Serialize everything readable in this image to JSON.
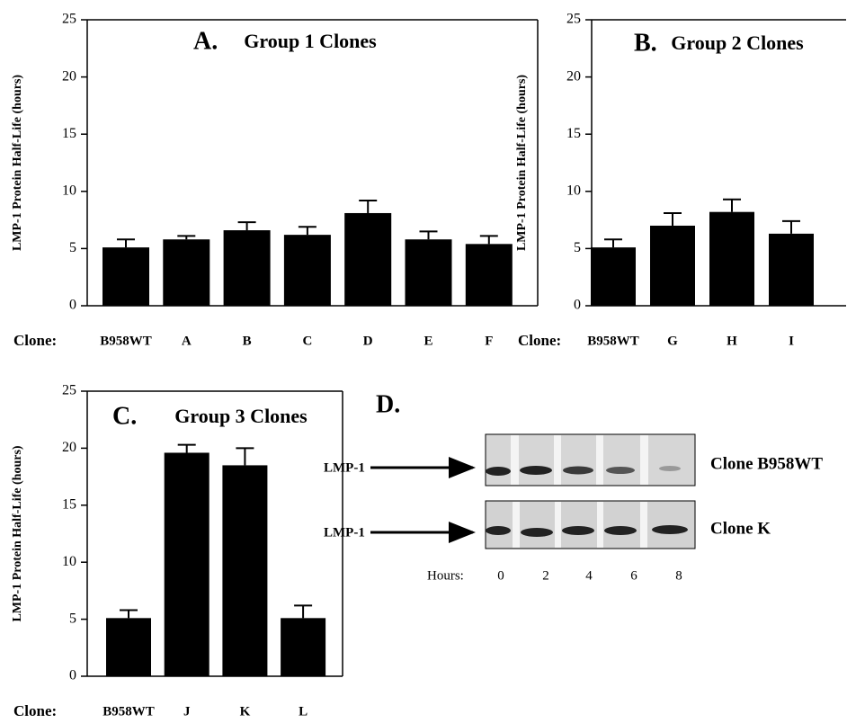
{
  "chart_data": [
    {
      "type": "bar",
      "label": "A.",
      "title": "Group 1 Clones",
      "y_label": "LMP-1 Protein Half-Life (hours)",
      "x_label": "Clone:",
      "categories": [
        "B958WT",
        "A",
        "B",
        "C",
        "D",
        "E",
        "F"
      ],
      "values": [
        5.1,
        5.8,
        6.6,
        6.2,
        8.1,
        5.8,
        5.4
      ],
      "errors": [
        0.7,
        0.3,
        0.7,
        0.7,
        1.1,
        0.7,
        0.7
      ],
      "color": "#000000",
      "ylim": [
        0,
        25
      ],
      "yticks": [
        0,
        5,
        10,
        15,
        20,
        25
      ]
    },
    {
      "type": "bar",
      "label": "B.",
      "title": "Group 2 Clones",
      "y_label": "LMP-1 Protein Half-Life (hours)",
      "x_label": "Clone:",
      "categories": [
        "B958WT",
        "G",
        "H",
        "I"
      ],
      "values": [
        5.1,
        7.0,
        8.2,
        6.3
      ],
      "errors": [
        0.7,
        1.1,
        1.1,
        1.1
      ],
      "color": "#000000",
      "ylim": [
        0,
        25
      ],
      "yticks": [
        0,
        5,
        10,
        15,
        20,
        25
      ]
    },
    {
      "type": "bar",
      "label": "C.",
      "title": "Group 3 Clones",
      "y_label": "LMP-1 Protein Half-Life (hours)",
      "x_label": "Clone:",
      "categories": [
        "B958WT",
        "J",
        "K",
        "L"
      ],
      "values": [
        5.1,
        19.6,
        18.5,
        5.1
      ],
      "errors": [
        0.7,
        0.7,
        1.5,
        1.1
      ],
      "color": "#000000",
      "ylim": [
        0,
        25
      ],
      "yticks": [
        0,
        5,
        10,
        15,
        20,
        25
      ]
    }
  ],
  "blot": {
    "label": "D.",
    "rows": [
      {
        "marker": "LMP-1",
        "name": "Clone B958WT"
      },
      {
        "marker": "LMP-1",
        "name": "Clone K"
      }
    ],
    "hours_label": "Hours:",
    "hours": [
      0,
      2,
      4,
      6,
      8
    ]
  }
}
